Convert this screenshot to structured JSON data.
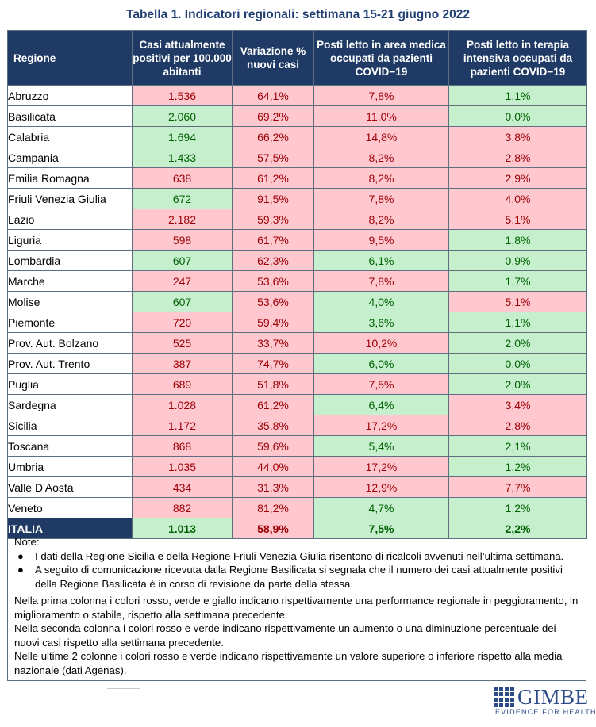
{
  "title": "Tabella 1. Indicatori regionali: settimana 15-21 giugno 2022",
  "headers": {
    "region": "Regione",
    "col1": "Casi attualmente positivi per 100.000 abitanti",
    "col2": "Variazione % nuovi casi",
    "col3": "Posti letto in area medica occupati da pazienti COVID−19",
    "col4": "Posti letto in terapia intensiva occupati da pazienti COVID−19"
  },
  "colors": {
    "red": "#ffc7ce",
    "green": "#c6efce",
    "header": "#1f3a64"
  },
  "rows": [
    {
      "region": "Abruzzo",
      "c1": "1.536",
      "c1s": "red",
      "c2": "64,1%",
      "c2s": "red",
      "c3": "7,8%",
      "c3s": "red",
      "c4": "1,1%",
      "c4s": "green"
    },
    {
      "region": "Basilicata",
      "c1": "2.060",
      "c1s": "green",
      "c2": "69,2%",
      "c2s": "red",
      "c3": "11,0%",
      "c3s": "red",
      "c4": "0,0%",
      "c4s": "green"
    },
    {
      "region": "Calabria",
      "c1": "1.694",
      "c1s": "green",
      "c2": "66,2%",
      "c2s": "red",
      "c3": "14,8%",
      "c3s": "red",
      "c4": "3,8%",
      "c4s": "red"
    },
    {
      "region": "Campania",
      "c1": "1.433",
      "c1s": "green",
      "c2": "57,5%",
      "c2s": "red",
      "c3": "8,2%",
      "c3s": "red",
      "c4": "2,8%",
      "c4s": "red"
    },
    {
      "region": "Emilia Romagna",
      "c1": "638",
      "c1s": "red",
      "c2": "61,2%",
      "c2s": "red",
      "c3": "8,2%",
      "c3s": "red",
      "c4": "2,9%",
      "c4s": "red"
    },
    {
      "region": "Friuli Venezia Giulia",
      "c1": "672",
      "c1s": "green",
      "c2": "91,5%",
      "c2s": "red",
      "c3": "7,8%",
      "c3s": "red",
      "c4": "4,0%",
      "c4s": "red"
    },
    {
      "region": "Lazio",
      "c1": "2.182",
      "c1s": "red",
      "c2": "59,3%",
      "c2s": "red",
      "c3": "8,2%",
      "c3s": "red",
      "c4": "5,1%",
      "c4s": "red"
    },
    {
      "region": "Liguria",
      "c1": "598",
      "c1s": "red",
      "c2": "61,7%",
      "c2s": "red",
      "c3": "9,5%",
      "c3s": "red",
      "c4": "1,8%",
      "c4s": "green"
    },
    {
      "region": "Lombardia",
      "c1": "607",
      "c1s": "green",
      "c2": "62,3%",
      "c2s": "red",
      "c3": "6,1%",
      "c3s": "green",
      "c4": "0,9%",
      "c4s": "green"
    },
    {
      "region": "Marche",
      "c1": "247",
      "c1s": "red",
      "c2": "53,6%",
      "c2s": "red",
      "c3": "7,8%",
      "c3s": "red",
      "c4": "1,7%",
      "c4s": "green"
    },
    {
      "region": "Molise",
      "c1": "607",
      "c1s": "green",
      "c2": "53,6%",
      "c2s": "red",
      "c3": "4,0%",
      "c3s": "green",
      "c4": "5,1%",
      "c4s": "red"
    },
    {
      "region": "Piemonte",
      "c1": "720",
      "c1s": "red",
      "c2": "59,4%",
      "c2s": "red",
      "c3": "3,6%",
      "c3s": "green",
      "c4": "1,1%",
      "c4s": "green"
    },
    {
      "region": "Prov. Aut. Bolzano",
      "c1": "525",
      "c1s": "red",
      "c2": "33,7%",
      "c2s": "red",
      "c3": "10,2%",
      "c3s": "red",
      "c4": "2,0%",
      "c4s": "green"
    },
    {
      "region": "Prov. Aut. Trento",
      "c1": "387",
      "c1s": "red",
      "c2": "74,7%",
      "c2s": "red",
      "c3": "6,0%",
      "c3s": "green",
      "c4": "0,0%",
      "c4s": "green"
    },
    {
      "region": "Puglia",
      "c1": "689",
      "c1s": "red",
      "c2": "51,8%",
      "c2s": "red",
      "c3": "7,5%",
      "c3s": "red",
      "c4": "2,0%",
      "c4s": "green"
    },
    {
      "region": "Sardegna",
      "c1": "1.028",
      "c1s": "red",
      "c2": "61,2%",
      "c2s": "red",
      "c3": "6,4%",
      "c3s": "green",
      "c4": "3,4%",
      "c4s": "red"
    },
    {
      "region": "Sicilia",
      "c1": "1.172",
      "c1s": "red",
      "c2": "35,8%",
      "c2s": "red",
      "c3": "17,2%",
      "c3s": "red",
      "c4": "2,8%",
      "c4s": "red"
    },
    {
      "region": "Toscana",
      "c1": "868",
      "c1s": "red",
      "c2": "59,6%",
      "c2s": "red",
      "c3": "5,4%",
      "c3s": "green",
      "c4": "2,1%",
      "c4s": "green"
    },
    {
      "region": "Umbria",
      "c1": "1.035",
      "c1s": "red",
      "c2": "44,0%",
      "c2s": "red",
      "c3": "17,2%",
      "c3s": "red",
      "c4": "1,2%",
      "c4s": "green"
    },
    {
      "region": "Valle D'Aosta",
      "c1": "434",
      "c1s": "red",
      "c2": "31,3%",
      "c2s": "red",
      "c3": "12,9%",
      "c3s": "red",
      "c4": "7,7%",
      "c4s": "red"
    },
    {
      "region": "Veneto",
      "c1": "882",
      "c1s": "red",
      "c2": "81,2%",
      "c2s": "red",
      "c3": "4,7%",
      "c3s": "green",
      "c4": "1,2%",
      "c4s": "green"
    }
  ],
  "total": {
    "region": "ITALIA",
    "c1": "1.013",
    "c1s": "green",
    "c2": "58,9%",
    "c2s": "red",
    "c3": "7,5%",
    "c3s": "green",
    "c4": "2,2%",
    "c4s": "green"
  },
  "notes": {
    "heading": "Note:",
    "bullets": [
      "I dati della Regione Sicilia e della Regione Friuli-Venezia Giulia risentono di ricalcoli avvenuti nell’ultima settimana.",
      "A seguito di comunicazione ricevuta dalla Regione Basilicata si segnala che il numero dei casi attualmente positivi della Regione Basilicata è in corso di revisione da parte della stessa."
    ],
    "paragraphs": [
      "Nella prima colonna i colori rosso, verde e giallo indicano rispettivamente una performance regionale in peggioramento, in miglioramento o stabile, rispetto alla settimana precedente.",
      "Nella seconda colonna i colori rosso e verde indicano rispettivamente un aumento o una diminuzione percentuale dei nuovi casi rispetto alla settimana precedente.",
      "Nelle ultime 2 colonne i colori rosso e verde indicano rispettivamente un valore superiore o inferiore rispetto alla media nazionale (dati Agenas)."
    ]
  },
  "logo": {
    "name": "GIMBE",
    "tagline": "EVIDENCE FOR HEALTH",
    "icon": "gimbe-grid-icon"
  }
}
